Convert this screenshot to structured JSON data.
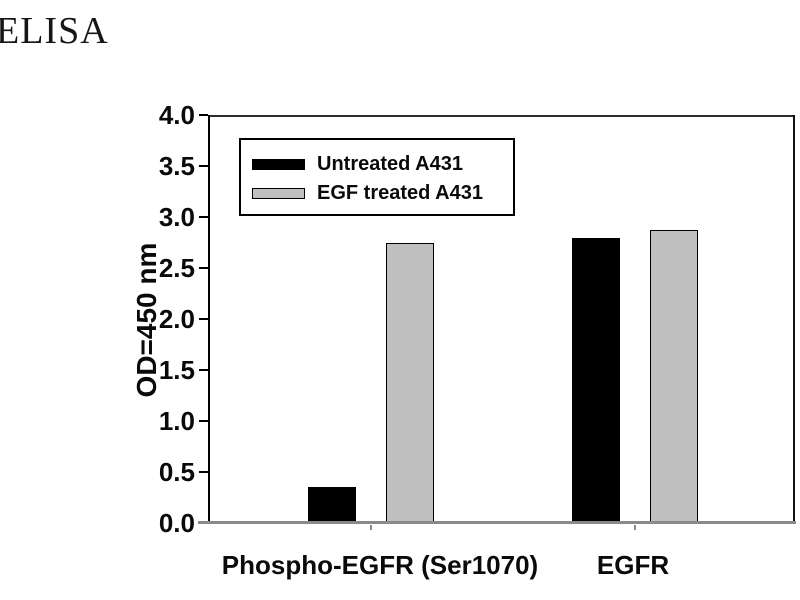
{
  "title": "ELISA",
  "chart_data": {
    "type": "bar",
    "title": "ELISA",
    "categories": [
      "Phospho-EGFR (Ser1070)",
      "EGFR"
    ],
    "series": [
      {
        "name": "Untreated A431",
        "color": "#000000",
        "values": [
          0.35,
          2.79
        ]
      },
      {
        "name": "EGF treated A431",
        "color": "#c0c0c0",
        "values": [
          2.75,
          2.87
        ]
      }
    ],
    "xlabel": "",
    "ylabel": "OD=450 nm",
    "ylim": [
      0.0,
      4.0
    ],
    "ytick_step": 0.5,
    "yticks": [
      "0.0",
      "0.5",
      "1.0",
      "1.5",
      "2.0",
      "2.5",
      "3.0",
      "3.5",
      "4.0"
    ],
    "grid": false,
    "legend_position": "upper-left-inside",
    "bar_border_color": "#000000",
    "axis_colors": {
      "left": "#000000",
      "bottom": "#8a8a8a"
    }
  }
}
